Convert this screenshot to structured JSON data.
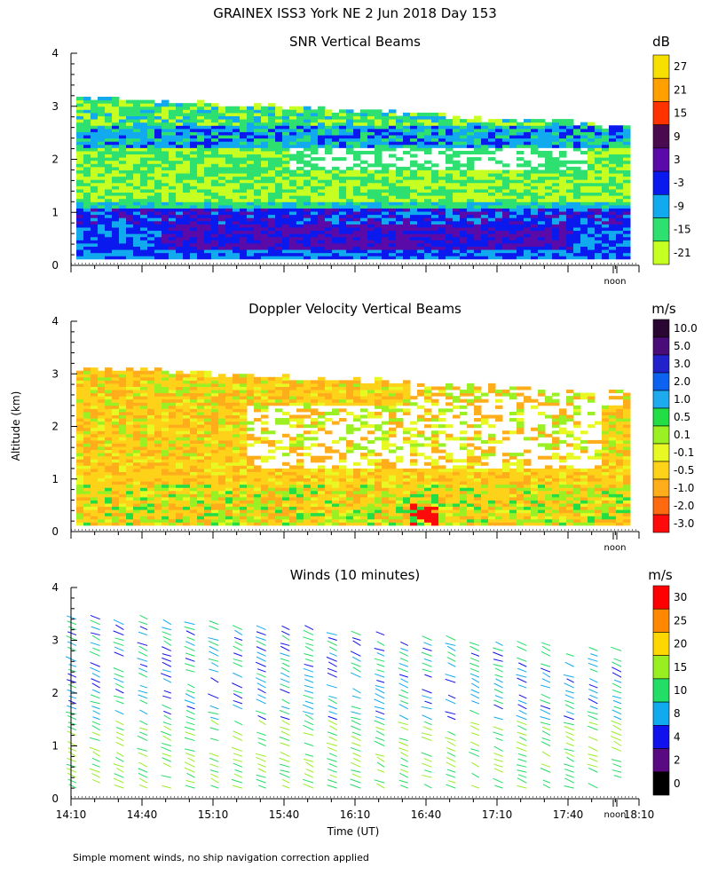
{
  "title": "GRAINEX ISS3 York NE   2 Jun 2018 Day 153",
  "y_axis_label": "Altitude (km)",
  "x_axis_label": "Time (UT)",
  "footnote": "Simple moment winds, no ship navigation correction applied",
  "noon_marker": "noon",
  "chart_data": [
    {
      "type": "heatmap",
      "title": "SNR Vertical Beams",
      "ylim": [
        0,
        4
      ],
      "y_ticks": [
        "0",
        "1",
        "2",
        "3",
        "4"
      ],
      "colorbar": {
        "unit": "dB",
        "labels": [
          "27",
          "21",
          "15",
          "9",
          "3",
          "-3",
          "-9",
          "-15",
          "-21"
        ],
        "colors": [
          "#f7e000",
          "#ff9f00",
          "#ff3300",
          "#4a0a50",
          "#5a0aa8",
          "#0a1aef",
          "#12aaee",
          "#2ee070",
          "#c6ff22"
        ]
      }
    },
    {
      "type": "heatmap",
      "title": "Doppler Velocity Vertical Beams",
      "ylim": [
        0,
        4
      ],
      "y_ticks": [
        "0",
        "1",
        "2",
        "3",
        "4"
      ],
      "colorbar": {
        "unit": "m/s",
        "labels": [
          "10.0",
          "5.0",
          "3.0",
          "2.0",
          "1.0",
          "0.5",
          "0.1",
          "-0.1",
          "-0.5",
          "-1.0",
          "-2.0",
          "-3.0"
        ],
        "colors": [
          "#2a0633",
          "#4a0c78",
          "#2222cc",
          "#0b63f0",
          "#1eaaee",
          "#22dd44",
          "#9af022",
          "#e8f822",
          "#ffd21a",
          "#ffad1a",
          "#ff6a10",
          "#ff0a0a"
        ]
      }
    },
    {
      "type": "scatter",
      "title": "Winds (10 minutes)",
      "ylim": [
        0,
        4
      ],
      "y_ticks": [
        "0",
        "1",
        "2",
        "3",
        "4"
      ],
      "x_ticks": [
        "14:10",
        "14:40",
        "15:10",
        "15:40",
        "16:10",
        "16:40",
        "17:10",
        "17:40",
        "18:10"
      ],
      "colorbar": {
        "unit": "m/s",
        "labels": [
          "30",
          "25",
          "20",
          "15",
          "10",
          "8",
          "4",
          "2",
          "0"
        ],
        "colors": [
          "#ff0000",
          "#ff8800",
          "#ffd700",
          "#99ee22",
          "#22dd66",
          "#11aaee",
          "#1111ee",
          "#5a0a80",
          "#000000"
        ]
      }
    }
  ]
}
